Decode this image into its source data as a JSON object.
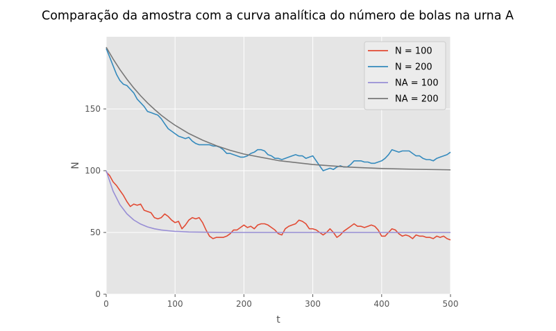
{
  "chart_data": {
    "type": "line",
    "title": "Comparação da amostra com a curva analítica do número de bolas na urna A",
    "xlabel": "t",
    "ylabel": "N",
    "xlim": [
      0,
      500
    ],
    "ylim": [
      0,
      200
    ],
    "x_ticks": [
      0,
      100,
      200,
      300,
      400,
      500
    ],
    "y_ticks": [
      0,
      50,
      100,
      150
    ],
    "grid": true,
    "legend_position": "top-right",
    "background_color": "#e5e5e5",
    "grid_color": "#ffffff",
    "series": [
      {
        "name": "N = 100",
        "color": "#e24a33",
        "x": [
          0,
          5,
          10,
          15,
          20,
          25,
          30,
          35,
          40,
          45,
          50,
          55,
          60,
          65,
          70,
          75,
          80,
          85,
          90,
          95,
          100,
          105,
          110,
          115,
          120,
          125,
          130,
          135,
          140,
          145,
          150,
          155,
          160,
          165,
          170,
          175,
          180,
          185,
          190,
          195,
          200,
          205,
          210,
          215,
          220,
          225,
          230,
          235,
          240,
          245,
          250,
          255,
          260,
          265,
          270,
          275,
          280,
          285,
          290,
          295,
          300,
          305,
          310,
          315,
          320,
          325,
          330,
          335,
          340,
          345,
          350,
          355,
          360,
          365,
          370,
          375,
          380,
          385,
          390,
          395,
          400,
          405,
          410,
          415,
          420,
          425,
          430,
          435,
          440,
          445,
          450,
          455,
          460,
          465,
          470,
          475,
          480,
          485,
          490,
          495,
          500
        ],
        "y": [
          99,
          96,
          91,
          88,
          84,
          80,
          75,
          71,
          73,
          72,
          73,
          68,
          67,
          66,
          62,
          61,
          62,
          65,
          63,
          60,
          58,
          59,
          53,
          56,
          60,
          62,
          61,
          62,
          58,
          52,
          47,
          45,
          46,
          46,
          46,
          47,
          49,
          52,
          52,
          54,
          56,
          54,
          55,
          53,
          56,
          57,
          57,
          56,
          54,
          52,
          49,
          48,
          53,
          55,
          56,
          57,
          60,
          59,
          57,
          53,
          53,
          52,
          50,
          48,
          50,
          53,
          50,
          46,
          48,
          51,
          53,
          55,
          57,
          55,
          55,
          54,
          55,
          56,
          55,
          52,
          47,
          47,
          50,
          53,
          52,
          49,
          47,
          48,
          47,
          45,
          48,
          47,
          47,
          46,
          46,
          45,
          47,
          46,
          47,
          45,
          44
        ]
      },
      {
        "name": "N = 200",
        "color": "#348abd",
        "x": [
          0,
          5,
          10,
          15,
          20,
          25,
          30,
          35,
          40,
          45,
          50,
          55,
          60,
          65,
          70,
          75,
          80,
          85,
          90,
          95,
          100,
          105,
          110,
          115,
          120,
          125,
          130,
          135,
          140,
          145,
          150,
          155,
          160,
          165,
          170,
          175,
          180,
          185,
          190,
          195,
          200,
          205,
          210,
          215,
          220,
          225,
          230,
          235,
          240,
          245,
          250,
          255,
          260,
          265,
          270,
          275,
          280,
          285,
          290,
          295,
          300,
          305,
          310,
          315,
          320,
          325,
          330,
          335,
          340,
          345,
          350,
          355,
          360,
          365,
          370,
          375,
          380,
          385,
          390,
          395,
          400,
          405,
          410,
          415,
          420,
          425,
          430,
          435,
          440,
          445,
          450,
          455,
          460,
          465,
          470,
          475,
          480,
          485,
          490,
          495,
          500
        ],
        "y": [
          199,
          192,
          185,
          178,
          173,
          170,
          169,
          166,
          163,
          158,
          155,
          152,
          148,
          147,
          146,
          145,
          142,
          138,
          134,
          132,
          130,
          128,
          127,
          126,
          127,
          124,
          122,
          121,
          121,
          121,
          121,
          120,
          120,
          119,
          117,
          114,
          114,
          113,
          112,
          111,
          111,
          112,
          114,
          115,
          117,
          117,
          116,
          113,
          112,
          110,
          110,
          109,
          110,
          111,
          112,
          113,
          112,
          112,
          110,
          111,
          112,
          108,
          104,
          100,
          101,
          102,
          101,
          103,
          104,
          103,
          103,
          105,
          108,
          108,
          108,
          107,
          107,
          106,
          106,
          107,
          108,
          110,
          113,
          117,
          116,
          115,
          116,
          116,
          116,
          114,
          112,
          112,
          110,
          109,
          109,
          108,
          110,
          111,
          112,
          113,
          115
        ]
      },
      {
        "name": "NA = 100",
        "color": "#988ed5",
        "function": "50 + 50*exp(-t/25)",
        "x": [
          0,
          10,
          20,
          30,
          40,
          50,
          60,
          70,
          80,
          90,
          100,
          120,
          140,
          160,
          180,
          200,
          250,
          300,
          400,
          500
        ],
        "y": [
          100,
          83.5,
          72.5,
          65.1,
          60.1,
          56.8,
          54.5,
          53.0,
          52.0,
          51.4,
          50.9,
          50.4,
          50.2,
          50.1,
          50.0,
          50.0,
          50.0,
          50.0,
          50.0,
          50.0
        ]
      },
      {
        "name": "NA = 200",
        "color": "#777777",
        "function": "100 + 100*exp(-t/100)",
        "x": [
          0,
          10,
          20,
          30,
          40,
          50,
          60,
          70,
          80,
          90,
          100,
          120,
          140,
          160,
          180,
          200,
          250,
          300,
          350,
          400,
          450,
          500
        ],
        "y": [
          200,
          190.5,
          181.9,
          174.1,
          167.0,
          160.7,
          154.9,
          149.7,
          144.9,
          140.7,
          136.8,
          130.1,
          124.7,
          120.2,
          116.5,
          113.5,
          108.2,
          105.0,
          103.0,
          101.8,
          101.1,
          100.7
        ]
      }
    ]
  }
}
